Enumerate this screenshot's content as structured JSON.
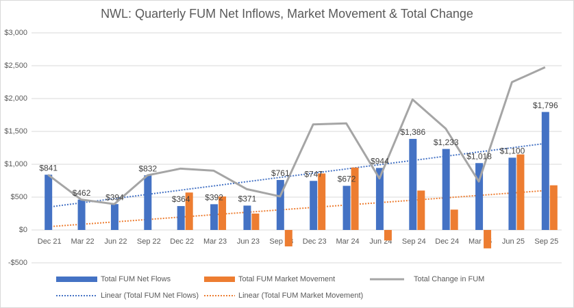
{
  "chart_data": {
    "type": "bar",
    "title": "NWL: Quarterly FUM Net Inflows, Market Movement & Total Change",
    "categories": [
      "Dec 21",
      "Mar 22",
      "Jun 22",
      "Sep 22",
      "Dec 22",
      "Mar 23",
      "Jun 23",
      "Sep 23",
      "Dec 23",
      "Mar 24",
      "Jun 24",
      "Sep 24",
      "Dec 24",
      "Mar 25",
      "Jun 25",
      "Sep 25"
    ],
    "series": [
      {
        "name": "Total FUM Net Flows",
        "type": "bar",
        "color": "#4472c4",
        "values": [
          841,
          462,
          394,
          832,
          364,
          392,
          371,
          761,
          747,
          672,
          944,
          1386,
          1233,
          1018,
          1100,
          1796
        ],
        "value_labels": [
          "$841",
          "$462",
          "$394",
          "$832",
          "$364",
          "$392",
          "$371",
          "$761",
          "$747",
          "$672",
          "$944",
          "$1,386",
          "$1,233",
          "$1,018",
          "$1,100",
          "$1,796"
        ]
      },
      {
        "name": "Total FUM Market Movement",
        "type": "bar",
        "color": "#ed7d31",
        "values": [
          0,
          0,
          0,
          0,
          570,
          510,
          250,
          -250,
          860,
          950,
          -160,
          600,
          310,
          -280,
          1150,
          680
        ]
      },
      {
        "name": "Total Change in FUM",
        "type": "line",
        "color": "#a5a5a5",
        "values": [
          841,
          462,
          394,
          832,
          934,
          902,
          621,
          511,
          1607,
          1622,
          784,
          1986,
          1543,
          738,
          2250,
          2476
        ]
      }
    ],
    "trendlines": [
      {
        "name": "Linear (Total FUM Net Flows)",
        "series": 0,
        "color": "#4472c4"
      },
      {
        "name": "Linear (Total FUM Market Movement)",
        "series": 1,
        "color": "#ed7d31"
      }
    ],
    "ylim": [
      -500,
      3000
    ],
    "yticks": [
      {
        "value": -500,
        "label": "-$500"
      },
      {
        "value": 0,
        "label": "$0"
      },
      {
        "value": 500,
        "label": "$500"
      },
      {
        "value": 1000,
        "label": "$1,000"
      },
      {
        "value": 1500,
        "label": "$1,500"
      },
      {
        "value": 2000,
        "label": "$2,000"
      },
      {
        "value": 2500,
        "label": "$2,500"
      },
      {
        "value": 3000,
        "label": "$3,000"
      }
    ],
    "grid": true,
    "legend": "bottom"
  }
}
